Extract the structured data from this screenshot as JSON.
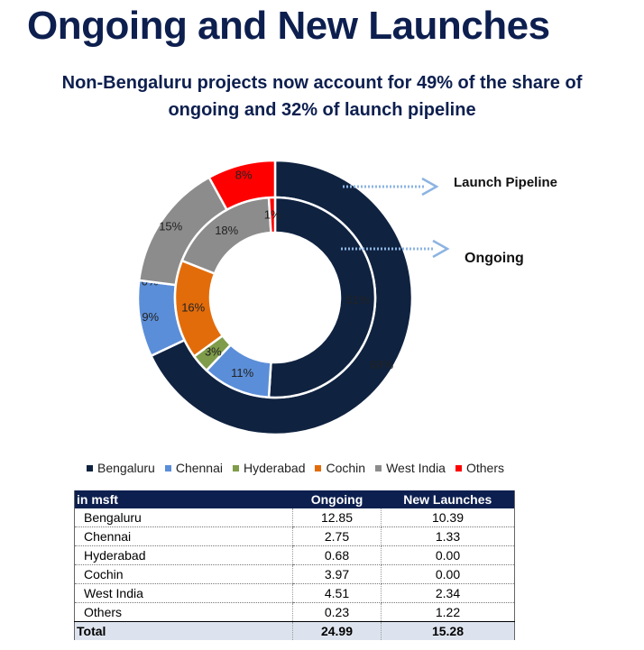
{
  "title": "Ongoing and New Launches",
  "subtitle": {
    "line1": "Non-Bengaluru projects now account for 49% of the share of",
    "line2": "ongoing and 32% of  launch pipeline"
  },
  "callouts": {
    "outer": "Launch Pipeline",
    "inner": "Ongoing"
  },
  "colors": {
    "Bengaluru": "#0f2240",
    "Chennai": "#5b8ed8",
    "Hyderabad": "#7f9c4a",
    "Cochin": "#e36c0a",
    "West India": "#8c8c8c",
    "Others": "#ff0000",
    "arrow": "#8cb4e2"
  },
  "chart_data": {
    "type": "donut",
    "categories": [
      "Bengaluru",
      "Chennai",
      "Hyderabad",
      "Cochin",
      "West India",
      "Others"
    ],
    "series": [
      {
        "name": "Launch Pipeline",
        "ring": "outer",
        "values": [
          68,
          9,
          0,
          0,
          15,
          8
        ],
        "labels": [
          "68%",
          "9%",
          "",
          "0%",
          "15%",
          "8%"
        ]
      },
      {
        "name": "Ongoing",
        "ring": "inner",
        "values": [
          51,
          11,
          3,
          16,
          18,
          1
        ],
        "labels": [
          "51%",
          "11%",
          "3%",
          "16%",
          "18%",
          "1%"
        ]
      }
    ],
    "legend_position": "bottom"
  },
  "table": {
    "headers": [
      "in msft",
      "Ongoing",
      "New Launches"
    ],
    "rows": [
      [
        "Bengaluru",
        "12.85",
        "10.39"
      ],
      [
        "Chennai",
        "2.75",
        "1.33"
      ],
      [
        "Hyderabad",
        "0.68",
        "0.00"
      ],
      [
        "Cochin",
        "3.97",
        "0.00"
      ],
      [
        "West India",
        "4.51",
        "2.34"
      ],
      [
        "Others",
        "0.23",
        "1.22"
      ]
    ],
    "total": [
      "Total",
      "24.99",
      "15.28"
    ]
  }
}
